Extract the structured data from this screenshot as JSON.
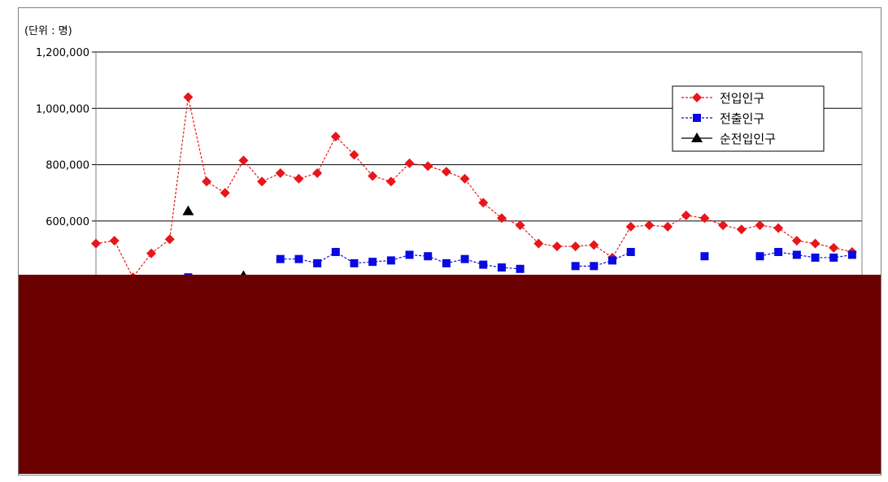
{
  "chart_data": {
    "type": "line",
    "unit_label": "(단위 : 명)",
    "y_ticks": [
      "1,200,000",
      "1,000,000",
      "800,000",
      "600,000"
    ],
    "y_tick_values": [
      1200000,
      1000000,
      800000,
      600000
    ],
    "ylim": [
      0,
      1200000
    ],
    "grid": true,
    "legend_position": "top-right",
    "series": [
      {
        "name": "전입인구",
        "color": "#e8161a",
        "marker": "diamond",
        "line_style": "dashed",
        "values": [
          520000,
          530000,
          400000,
          485000,
          535000,
          1040000,
          740000,
          700000,
          815000,
          740000,
          770000,
          750000,
          770000,
          900000,
          835000,
          760000,
          740000,
          805000,
          795000,
          775000,
          750000,
          665000,
          610000,
          585000,
          520000,
          510000,
          510000,
          515000,
          470000,
          580000,
          585000,
          580000,
          620000,
          610000,
          585000,
          570000,
          585000,
          575000,
          530000,
          520000,
          505000,
          490000
        ]
      },
      {
        "name": "전출인구",
        "color": "#0a0ae0",
        "marker": "square",
        "line_style": "dashed",
        "values": [
          null,
          null,
          null,
          null,
          null,
          400000,
          null,
          null,
          null,
          null,
          465000,
          465000,
          450000,
          490000,
          450000,
          455000,
          460000,
          480000,
          475000,
          450000,
          465000,
          445000,
          435000,
          430000,
          null,
          null,
          440000,
          440000,
          460000,
          490000,
          null,
          null,
          null,
          475000,
          null,
          null,
          475000,
          490000,
          480000,
          470000,
          470000,
          480000
        ]
      },
      {
        "name": "순전입인구",
        "color": "#000000",
        "marker": "triangle",
        "line_style": "solid",
        "values": [
          null,
          null,
          null,
          null,
          null,
          635000,
          null,
          null,
          405000
        ]
      }
    ]
  }
}
